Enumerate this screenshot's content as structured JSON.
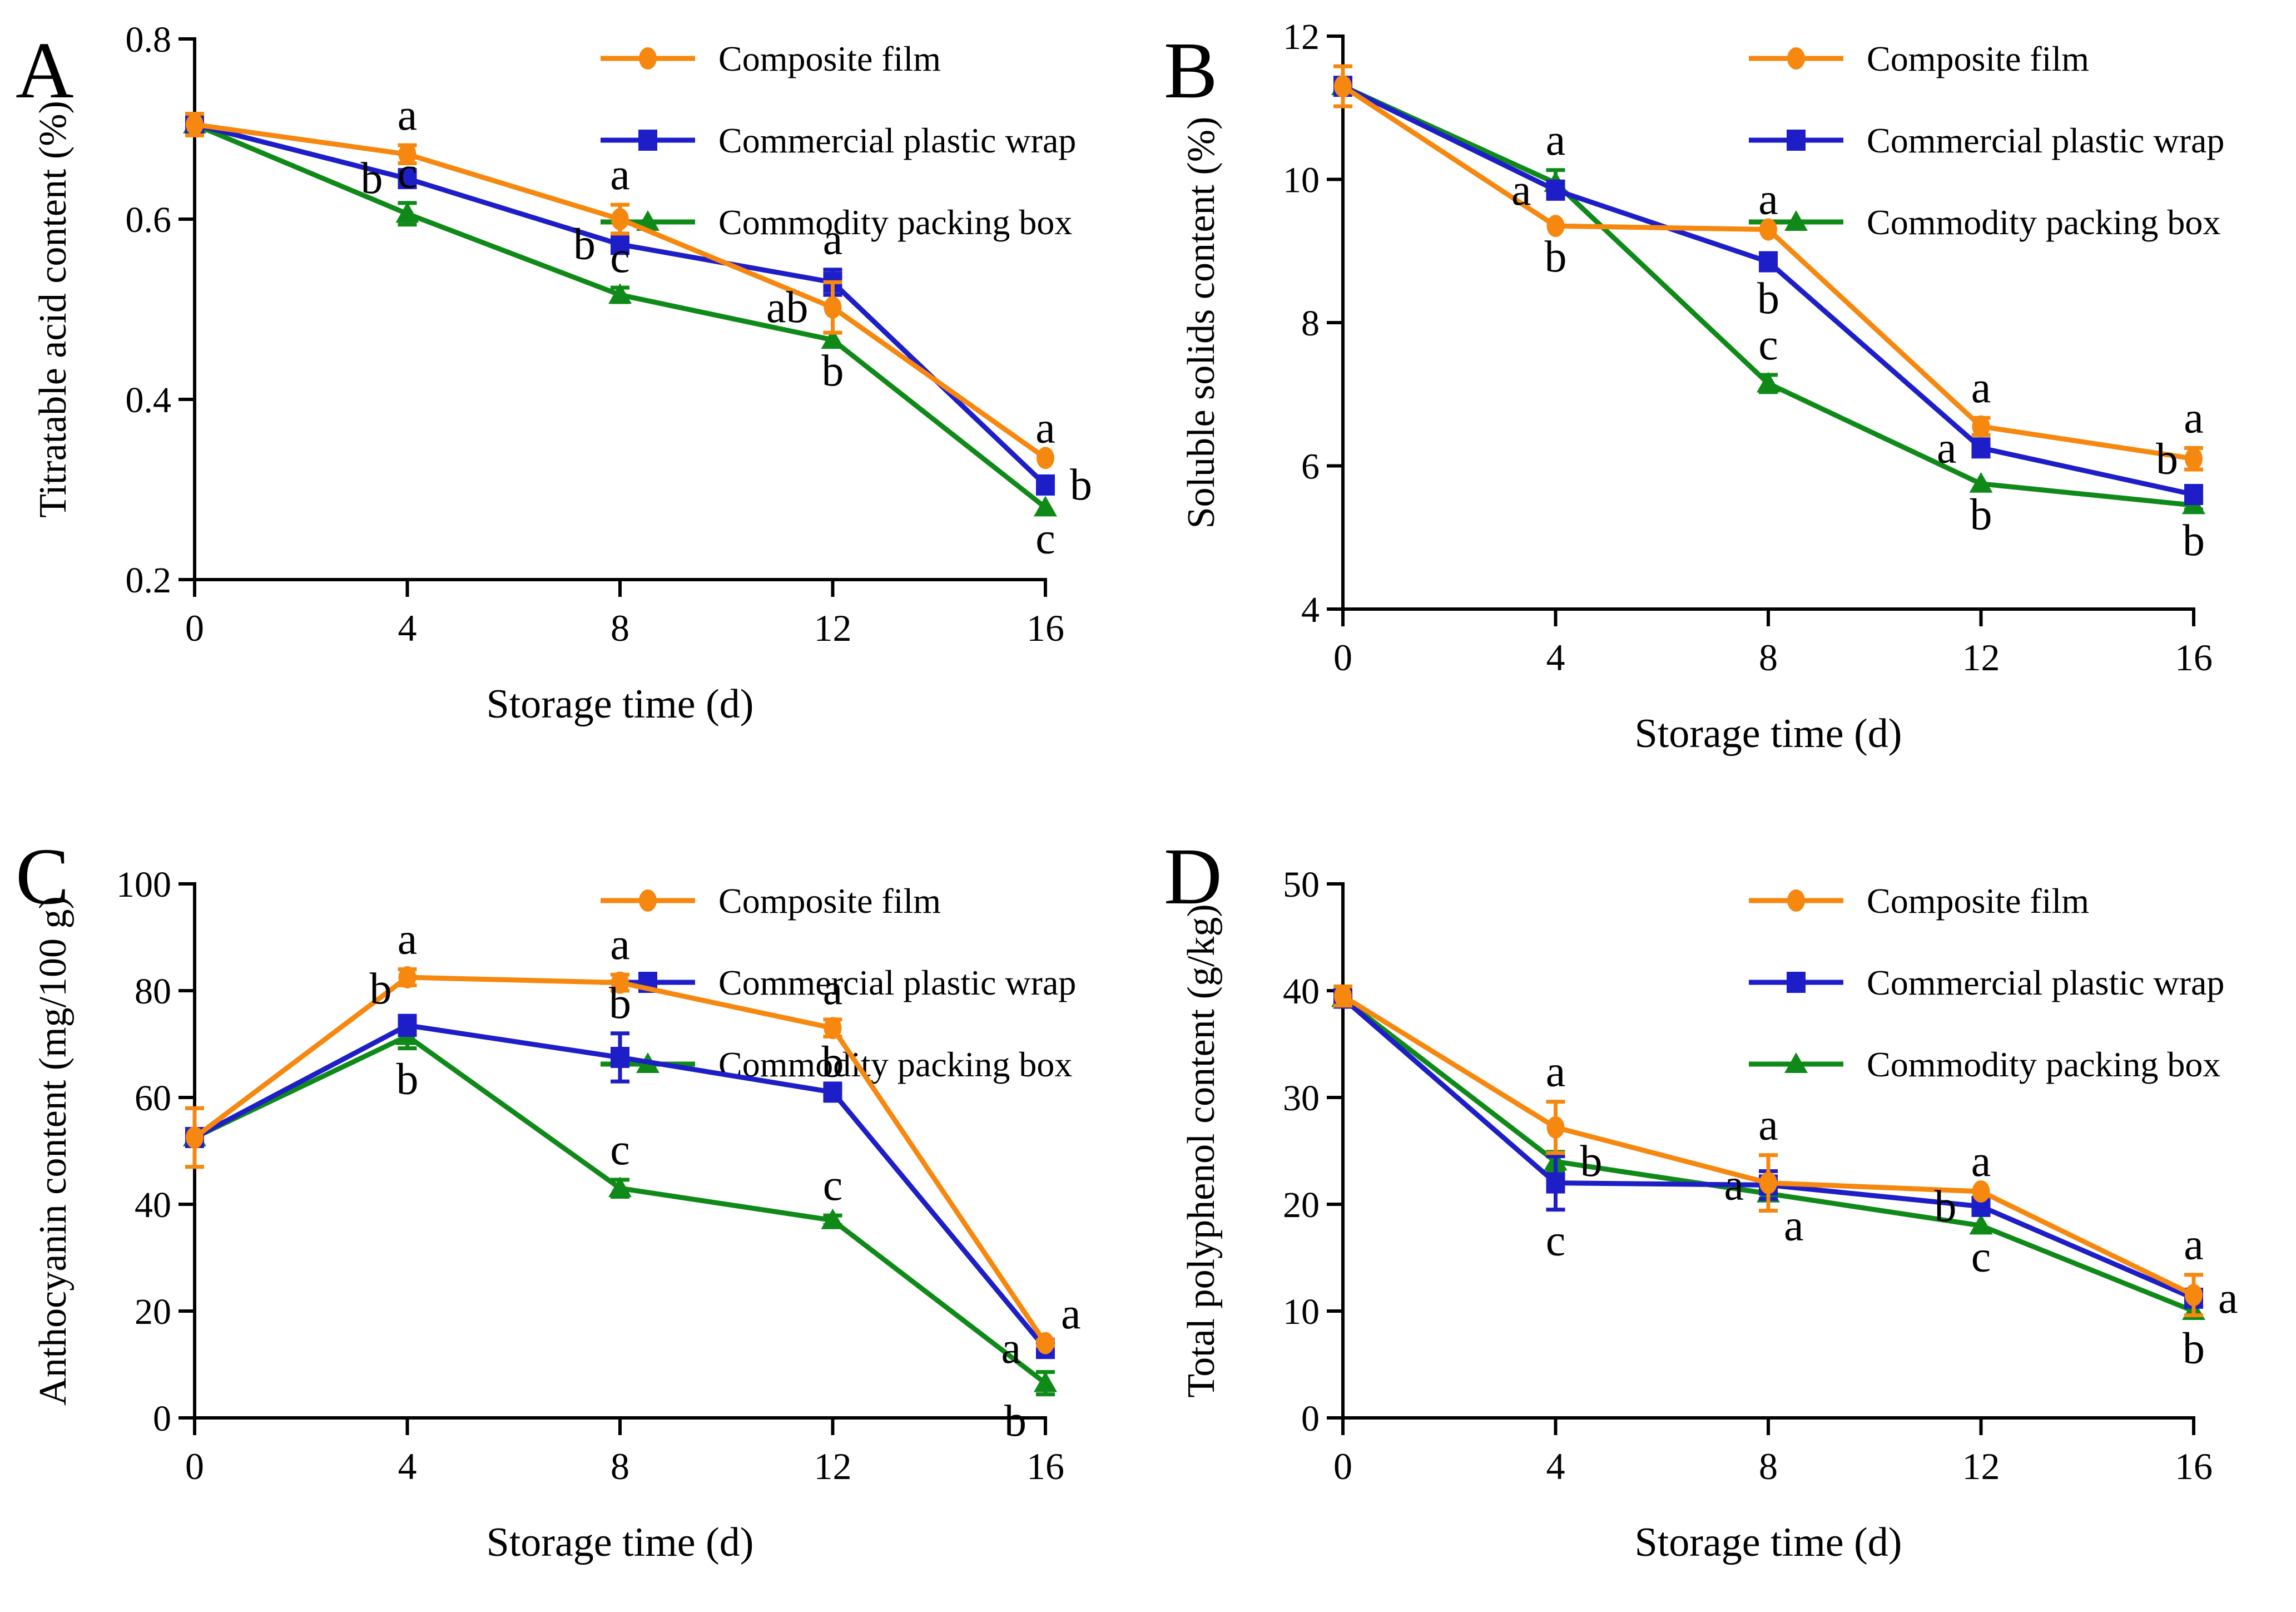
{
  "figure": {
    "background": "#ffffff",
    "panels": [
      "A",
      "B",
      "C",
      "D"
    ]
  },
  "legend": {
    "position": "top-right-inside",
    "items": [
      {
        "label": "Composite film",
        "color": "#F6870F",
        "marker": "circle"
      },
      {
        "label": "Commercial plastic wrap",
        "color": "#1E1EC8",
        "marker": "square"
      },
      {
        "label": "Commodity packing box",
        "color": "#0F8A18",
        "marker": "triangle"
      }
    ]
  },
  "chart_data": [
    {
      "id": "A",
      "panel_letter": "A",
      "type": "line",
      "xlabel": "Storage time (d)",
      "ylabel": "Titratable acid content (%)",
      "xlim": [
        0,
        16
      ],
      "ylim": [
        0.2,
        0.8
      ],
      "xticks": [
        0,
        4,
        8,
        12,
        16
      ],
      "xtick_labels": [
        "0",
        "4",
        "8",
        "12",
        "16"
      ],
      "yticks": [
        0.2,
        0.4,
        0.6,
        0.8
      ],
      "ytick_labels": [
        "0.2",
        "0.4",
        "0.6",
        "0.8"
      ],
      "grid": false,
      "series": [
        {
          "name": "Composite film",
          "color": "#F6870F",
          "marker": "circle",
          "points": [
            {
              "x": 0,
              "y": 0.705,
              "err": 0.012,
              "sig": ""
            },
            {
              "x": 4,
              "y": 0.672,
              "err": 0.01,
              "sig": "a",
              "sig_pos": "above"
            },
            {
              "x": 8,
              "y": 0.6,
              "err": 0.016,
              "sig": "a",
              "sig_pos": "above"
            },
            {
              "x": 12,
              "y": 0.502,
              "err": 0.028,
              "sig": "ab",
              "sig_pos": "left"
            },
            {
              "x": 16,
              "y": 0.335,
              "err": 0,
              "sig": "a",
              "sig_pos": "above"
            }
          ]
        },
        {
          "name": "Commercial plastic wrap",
          "color": "#1E1EC8",
          "marker": "square",
          "points": [
            {
              "x": 0,
              "y": 0.705,
              "err": 0,
              "sig": ""
            },
            {
              "x": 4,
              "y": 0.645,
              "err": 0,
              "sig": "b",
              "sig_pos": "left"
            },
            {
              "x": 8,
              "y": 0.572,
              "err": 0,
              "sig": "b",
              "sig_pos": "left"
            },
            {
              "x": 12,
              "y": 0.53,
              "err": 0.014,
              "sig": "a",
              "sig_pos": "above"
            },
            {
              "x": 16,
              "y": 0.305,
              "err": 0,
              "sig": "b",
              "sig_pos": "right"
            }
          ]
        },
        {
          "name": "Commodity packing box",
          "color": "#0F8A18",
          "marker": "triangle",
          "points": [
            {
              "x": 0,
              "y": 0.705,
              "err": 0,
              "sig": ""
            },
            {
              "x": 4,
              "y": 0.606,
              "err": 0.012,
              "sig": "c",
              "sig_pos": "above"
            },
            {
              "x": 8,
              "y": 0.516,
              "err": 0.008,
              "sig": "c",
              "sig_pos": "above"
            },
            {
              "x": 12,
              "y": 0.466,
              "err": 0,
              "sig": "b",
              "sig_pos": "below"
            },
            {
              "x": 16,
              "y": 0.28,
              "err": 0,
              "sig": "c",
              "sig_pos": "below"
            }
          ]
        }
      ]
    },
    {
      "id": "B",
      "panel_letter": "B",
      "type": "line",
      "xlabel": "Storage time (d)",
      "ylabel": "Soluble solids content (%)",
      "xlim": [
        0,
        16
      ],
      "ylim": [
        4,
        12
      ],
      "xticks": [
        0,
        4,
        8,
        12,
        16
      ],
      "xtick_labels": [
        "0",
        "4",
        "8",
        "12",
        "16"
      ],
      "yticks": [
        4,
        6,
        8,
        10,
        12
      ],
      "ytick_labels": [
        "4",
        "6",
        "8",
        "10",
        "12"
      ],
      "grid": false,
      "series": [
        {
          "name": "Composite film",
          "color": "#F6870F",
          "marker": "circle",
          "points": [
            {
              "x": 0,
              "y": 11.3,
              "err": 0.28,
              "sig": ""
            },
            {
              "x": 4,
              "y": 9.35,
              "err": 0,
              "sig": "b",
              "sig_pos": "below"
            },
            {
              "x": 8,
              "y": 9.3,
              "err": 0,
              "sig": "a",
              "sig_pos": "above"
            },
            {
              "x": 12,
              "y": 6.55,
              "err": 0.12,
              "sig": "a",
              "sig_pos": "above"
            },
            {
              "x": 16,
              "y": 6.1,
              "err": 0.15,
              "sig": "a",
              "sig_pos": "above"
            }
          ]
        },
        {
          "name": "Commercial plastic wrap",
          "color": "#1E1EC8",
          "marker": "square",
          "points": [
            {
              "x": 0,
              "y": 11.3,
              "err": 0,
              "sig": ""
            },
            {
              "x": 4,
              "y": 9.85,
              "err": 0.12,
              "sig": "a",
              "sig_pos": "left"
            },
            {
              "x": 8,
              "y": 8.85,
              "err": 0.08,
              "sig": "b",
              "sig_pos": "below"
            },
            {
              "x": 12,
              "y": 6.25,
              "err": 0.1,
              "sig": "a",
              "sig_pos": "left"
            },
            {
              "x": 16,
              "y": 5.6,
              "err": 0.12,
              "sig": "b",
              "sig_pos": "above-left"
            }
          ]
        },
        {
          "name": "Commodity packing box",
          "color": "#0F8A18",
          "marker": "triangle",
          "points": [
            {
              "x": 0,
              "y": 11.3,
              "err": 0,
              "sig": ""
            },
            {
              "x": 4,
              "y": 9.95,
              "err": 0.18,
              "sig": "a",
              "sig_pos": "above"
            },
            {
              "x": 8,
              "y": 7.15,
              "err": 0.12,
              "sig": "c",
              "sig_pos": "above"
            },
            {
              "x": 12,
              "y": 5.75,
              "err": 0,
              "sig": "b",
              "sig_pos": "below"
            },
            {
              "x": 16,
              "y": 5.45,
              "err": 0.06,
              "sig": "b",
              "sig_pos": "below"
            }
          ]
        }
      ]
    },
    {
      "id": "C",
      "panel_letter": "C",
      "type": "line",
      "xlabel": "Storage time (d)",
      "ylabel": "Anthocyanin content (mg/100 g)",
      "xlim": [
        0,
        16
      ],
      "ylim": [
        0,
        100
      ],
      "xticks": [
        0,
        4,
        8,
        12,
        16
      ],
      "xtick_labels": [
        "0",
        "4",
        "8",
        "12",
        "16"
      ],
      "yticks": [
        0,
        20,
        40,
        60,
        80,
        100
      ],
      "ytick_labels": [
        "0",
        "20",
        "40",
        "60",
        "80",
        "100"
      ],
      "grid": false,
      "series": [
        {
          "name": "Composite film",
          "color": "#F6870F",
          "marker": "circle",
          "points": [
            {
              "x": 0,
              "y": 52.5,
              "err": 5.5,
              "sig": ""
            },
            {
              "x": 4,
              "y": 82.5,
              "err": 1.5,
              "sig": "a",
              "sig_pos": "above"
            },
            {
              "x": 8,
              "y": 81.5,
              "err": 1.5,
              "sig": "a",
              "sig_pos": "above"
            },
            {
              "x": 12,
              "y": 73,
              "err": 1.6,
              "sig": "a",
              "sig_pos": "above"
            },
            {
              "x": 16,
              "y": 14,
              "err": 0.5,
              "sig": "a",
              "sig_pos": "above-right"
            }
          ]
        },
        {
          "name": "Commercial plastic wrap",
          "color": "#1E1EC8",
          "marker": "square",
          "points": [
            {
              "x": 0,
              "y": 52.5,
              "err": 0,
              "sig": ""
            },
            {
              "x": 4,
              "y": 73.5,
              "err": 1.8,
              "sig": "b",
              "sig_pos": "above-left"
            },
            {
              "x": 8,
              "y": 67.5,
              "err": 4.5,
              "sig": "b",
              "sig_pos": "above"
            },
            {
              "x": 12,
              "y": 61,
              "err": 0,
              "sig": "b",
              "sig_pos": "above"
            },
            {
              "x": 16,
              "y": 13,
              "err": 0,
              "sig": "a",
              "sig_pos": "left"
            }
          ]
        },
        {
          "name": "Commodity packing box",
          "color": "#0F8A18",
          "marker": "triangle",
          "points": [
            {
              "x": 0,
              "y": 52.5,
              "err": 0,
              "sig": ""
            },
            {
              "x": 4,
              "y": 71.5,
              "err": 2.3,
              "sig": "b",
              "sig_pos": "below"
            },
            {
              "x": 8,
              "y": 43,
              "err": 1.6,
              "sig": "c",
              "sig_pos": "above"
            },
            {
              "x": 12,
              "y": 37,
              "err": 0.9,
              "sig": "c",
              "sig_pos": "above"
            },
            {
              "x": 16,
              "y": 6.5,
              "err": 2.1,
              "sig": "b",
              "sig_pos": "below-left"
            }
          ]
        }
      ]
    },
    {
      "id": "D",
      "panel_letter": "D",
      "type": "line",
      "xlabel": "Storage time (d)",
      "ylabel": "Total polyphenol content (g/kg)",
      "xlim": [
        0,
        16
      ],
      "ylim": [
        0,
        50
      ],
      "xticks": [
        0,
        4,
        8,
        12,
        16
      ],
      "xtick_labels": [
        "0",
        "4",
        "8",
        "12",
        "16"
      ],
      "yticks": [
        0,
        10,
        20,
        30,
        40,
        50
      ],
      "ytick_labels": [
        "0",
        "10",
        "20",
        "30",
        "40",
        "50"
      ],
      "grid": false,
      "series": [
        {
          "name": "Composite film",
          "color": "#F6870F",
          "marker": "circle",
          "points": [
            {
              "x": 0,
              "y": 39.5,
              "err": 0.9,
              "sig": ""
            },
            {
              "x": 4,
              "y": 27.2,
              "err": 2.4,
              "sig": "a",
              "sig_pos": "above"
            },
            {
              "x": 8,
              "y": 22,
              "err": 2.6,
              "sig": "a",
              "sig_pos": "above"
            },
            {
              "x": 12,
              "y": 21.2,
              "err": 0,
              "sig": "a",
              "sig_pos": "above"
            },
            {
              "x": 16,
              "y": 11.5,
              "err": 1.9,
              "sig": "a",
              "sig_pos": "above"
            }
          ]
        },
        {
          "name": "Commercial plastic wrap",
          "color": "#1E1EC8",
          "marker": "square",
          "points": [
            {
              "x": 0,
              "y": 39.3,
              "err": 0,
              "sig": ""
            },
            {
              "x": 4,
              "y": 22,
              "err": 2.5,
              "sig": "c",
              "sig_pos": "below"
            },
            {
              "x": 8,
              "y": 21.8,
              "err": 1.3,
              "sig": "a",
              "sig_pos": "left"
            },
            {
              "x": 12,
              "y": 19.8,
              "err": 0,
              "sig": "b",
              "sig_pos": "left"
            },
            {
              "x": 16,
              "y": 11.2,
              "err": 0,
              "sig": "a",
              "sig_pos": "right"
            }
          ]
        },
        {
          "name": "Commodity packing box",
          "color": "#0F8A18",
          "marker": "triangle",
          "points": [
            {
              "x": 0,
              "y": 39.3,
              "err": 0.5,
              "sig": ""
            },
            {
              "x": 4,
              "y": 24,
              "err": 0.9,
              "sig": "b",
              "sig_pos": "right"
            },
            {
              "x": 8,
              "y": 21,
              "err": 0.5,
              "sig": "a",
              "sig_pos": "below-right"
            },
            {
              "x": 12,
              "y": 18,
              "err": 0,
              "sig": "c",
              "sig_pos": "below"
            },
            {
              "x": 16,
              "y": 10,
              "err": 0.6,
              "sig": "b",
              "sig_pos": "below"
            }
          ]
        }
      ]
    }
  ]
}
